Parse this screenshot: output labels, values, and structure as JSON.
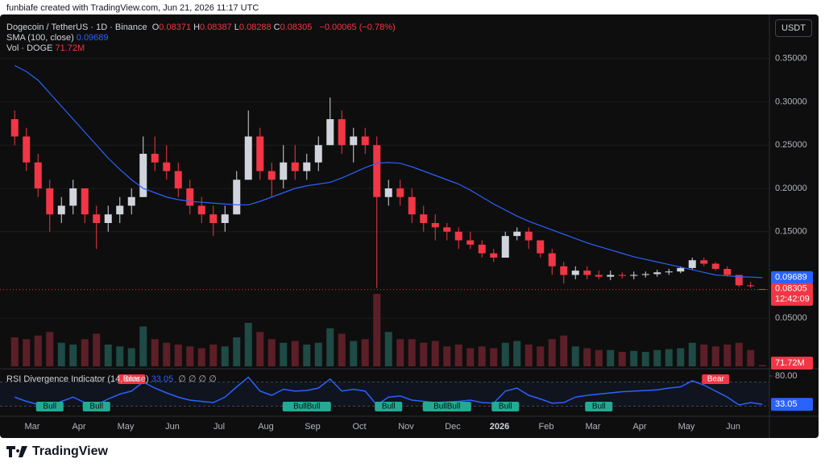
{
  "header": {
    "credit": "funbiafe created with TradingView.com, Jun 21, 2026 11:17 UTC",
    "symbol": "Dogecoin / TetherUS · 1D · Binance",
    "ohlc": [
      {
        "key": "O",
        "value": 0.08371
      },
      {
        "key": "H",
        "value": 0.08387
      },
      {
        "key": "L",
        "value": 0.08288
      },
      {
        "key": "C",
        "value": 0.08305
      }
    ],
    "change": "−0.00065 (−0.78%)",
    "currency": "USDT"
  },
  "chart_data": {
    "type": "candlestick",
    "categories": [
      null,
      null,
      "Mar",
      null,
      null,
      null,
      "Apr",
      null,
      null,
      null,
      "May",
      null,
      null,
      null,
      "Jun",
      null,
      null,
      null,
      "Jul",
      null,
      null,
      null,
      "Aug",
      null,
      null,
      null,
      "Sep",
      null,
      null,
      null,
      "Oct",
      null,
      null,
      null,
      "Nov",
      null,
      null,
      null,
      "Dec",
      null,
      null,
      null,
      "2026",
      null,
      null,
      null,
      "Feb",
      null,
      null,
      null,
      "Mar",
      null,
      null,
      null,
      "Apr",
      null,
      null,
      null,
      "May",
      null,
      null,
      null,
      "Jun",
      null,
      null
    ],
    "open": [
      0.28,
      0.26,
      0.23,
      0.2,
      0.17,
      0.18,
      0.2,
      0.17,
      0.16,
      0.17,
      0.18,
      0.19,
      0.24,
      0.23,
      0.22,
      0.2,
      0.18,
      0.17,
      0.16,
      0.17,
      0.21,
      0.26,
      0.22,
      0.21,
      0.23,
      0.22,
      0.23,
      0.25,
      0.28,
      0.25,
      0.26,
      0.25,
      0.19,
      0.2,
      0.19,
      0.17,
      0.16,
      0.155,
      0.15,
      0.14,
      0.135,
      0.125,
      0.12,
      0.145,
      0.15,
      0.14,
      0.125,
      0.11,
      0.1,
      0.105,
      0.1,
      0.098,
      0.1,
      0.099,
      0.1,
      0.101,
      0.103,
      0.104,
      0.108,
      0.117,
      0.113,
      0.107,
      0.1,
      0.088,
      0.08371
    ],
    "high": [
      0.29,
      0.27,
      0.24,
      0.21,
      0.19,
      0.21,
      0.2,
      0.18,
      0.18,
      0.19,
      0.2,
      0.26,
      0.26,
      0.25,
      0.23,
      0.21,
      0.19,
      0.18,
      0.18,
      0.22,
      0.29,
      0.27,
      0.23,
      0.25,
      0.25,
      0.24,
      0.26,
      0.305,
      0.29,
      0.27,
      0.27,
      0.26,
      0.21,
      0.21,
      0.2,
      0.18,
      0.17,
      0.16,
      0.155,
      0.15,
      0.14,
      0.13,
      0.15,
      0.155,
      0.155,
      0.14,
      0.13,
      0.115,
      0.11,
      0.11,
      0.105,
      0.105,
      0.103,
      0.104,
      0.104,
      0.106,
      0.107,
      0.11,
      0.12,
      0.12,
      0.115,
      0.11,
      0.1,
      0.092,
      0.08387
    ],
    "low": [
      0.25,
      0.22,
      0.19,
      0.15,
      0.16,
      0.17,
      0.16,
      0.13,
      0.15,
      0.16,
      0.17,
      0.19,
      0.22,
      0.21,
      0.19,
      0.17,
      0.16,
      0.145,
      0.15,
      0.17,
      0.21,
      0.21,
      0.19,
      0.2,
      0.21,
      0.21,
      0.22,
      0.25,
      0.24,
      0.23,
      0.24,
      0.085,
      0.18,
      0.18,
      0.16,
      0.15,
      0.14,
      0.14,
      0.13,
      0.13,
      0.12,
      0.115,
      0.12,
      0.14,
      0.13,
      0.12,
      0.1,
      0.09,
      0.095,
      0.095,
      0.095,
      0.094,
      0.096,
      0.095,
      0.097,
      0.098,
      0.1,
      0.102,
      0.106,
      0.11,
      0.105,
      0.098,
      0.086,
      0.085,
      0.08288
    ],
    "close": [
      0.26,
      0.23,
      0.2,
      0.17,
      0.18,
      0.2,
      0.17,
      0.16,
      0.17,
      0.18,
      0.19,
      0.24,
      0.23,
      0.22,
      0.2,
      0.18,
      0.17,
      0.16,
      0.17,
      0.21,
      0.26,
      0.22,
      0.21,
      0.23,
      0.22,
      0.23,
      0.25,
      0.28,
      0.25,
      0.26,
      0.25,
      0.19,
      0.2,
      0.19,
      0.17,
      0.16,
      0.155,
      0.15,
      0.14,
      0.135,
      0.125,
      0.12,
      0.145,
      0.15,
      0.14,
      0.125,
      0.11,
      0.1,
      0.105,
      0.1,
      0.098,
      0.1,
      0.099,
      0.1,
      0.101,
      0.103,
      0.104,
      0.108,
      0.117,
      0.113,
      0.107,
      0.1,
      0.088,
      0.087,
      0.08305
    ],
    "up_color": "#d1d4dc",
    "down_color": "#f23645",
    "ylim": [
      0,
      0.4
    ],
    "yticks": [
      {
        "value": 0.05,
        "label": "0.05000"
      },
      {
        "value": 0.15,
        "label": "0.15000"
      },
      {
        "value": 0.2,
        "label": "0.20000"
      },
      {
        "value": 0.25,
        "label": "0.25000"
      },
      {
        "value": 0.3,
        "label": "0.30000"
      },
      {
        "value": 0.35,
        "label": "0.35000"
      }
    ],
    "countdown": "12:42:09",
    "sma": {
      "name": "SMA (100, close)",
      "color": "#2962ff",
      "values": [
        0.342,
        0.335,
        0.325,
        0.31,
        0.295,
        0.28,
        0.265,
        0.25,
        0.235,
        0.222,
        0.21,
        0.2,
        0.195,
        0.19,
        0.187,
        0.185,
        0.184,
        0.183,
        0.182,
        0.181,
        0.181,
        0.185,
        0.19,
        0.195,
        0.2,
        0.203,
        0.205,
        0.207,
        0.212,
        0.218,
        0.224,
        0.229,
        0.23,
        0.229,
        0.225,
        0.22,
        0.215,
        0.21,
        0.205,
        0.198,
        0.19,
        0.182,
        0.175,
        0.168,
        0.162,
        0.157,
        0.152,
        0.147,
        0.142,
        0.137,
        0.133,
        0.129,
        0.125,
        0.121,
        0.118,
        0.115,
        0.112,
        0.109,
        0.106,
        0.103,
        0.1,
        0.099,
        0.098,
        0.0975,
        0.09689
      ]
    },
    "volume": {
      "name": "Vol · DOGE",
      "label": "71.72M",
      "values": [
        1600,
        1500,
        1700,
        1900,
        1300,
        1200,
        1500,
        1800,
        1200,
        1100,
        1000,
        2200,
        1500,
        1300,
        1200,
        1100,
        1000,
        1200,
        1100,
        1600,
        2400,
        1900,
        1500,
        1300,
        1400,
        1200,
        1300,
        2100,
        1800,
        1400,
        1500,
        4000,
        1900,
        1500,
        1500,
        1300,
        1400,
        1100,
        1200,
        1000,
        1100,
        1000,
        1300,
        1400,
        1200,
        1100,
        1500,
        1700,
        1100,
        1000,
        900,
        900,
        800,
        850,
        800,
        900,
        950,
        1000,
        1300,
        1200,
        1100,
        1200,
        1300,
        900,
        71.72
      ]
    },
    "rsi": {
      "name": "RSI Divergence Indicator (14, close)",
      "extra": "∅ ∅ ∅ ∅",
      "color": "#2962ff",
      "values": [
        45,
        38,
        33,
        30,
        38,
        45,
        36,
        32,
        42,
        50,
        55,
        70,
        60,
        52,
        45,
        40,
        38,
        36,
        45,
        62,
        78,
        55,
        48,
        58,
        55,
        56,
        60,
        75,
        55,
        58,
        55,
        32,
        45,
        47,
        40,
        38,
        36,
        37,
        38,
        40,
        36,
        35,
        55,
        60,
        48,
        42,
        35,
        36,
        45,
        48,
        50,
        52,
        54,
        55,
        56,
        57,
        60,
        62,
        72,
        65,
        55,
        45,
        32,
        36,
        33.05
      ],
      "ylim": [
        20,
        86.67
      ],
      "yticks": [
        {
          "value": 80,
          "label": "80.00"
        }
      ],
      "bands": [
        70,
        30
      ],
      "divergences": [
        "Bull",
        "Bull",
        "Bear",
        "BullBull",
        "Bull",
        "BullBull",
        "Bull",
        "Bull",
        "Bear"
      ]
    }
  },
  "footer": {
    "brand": "TradingView"
  }
}
